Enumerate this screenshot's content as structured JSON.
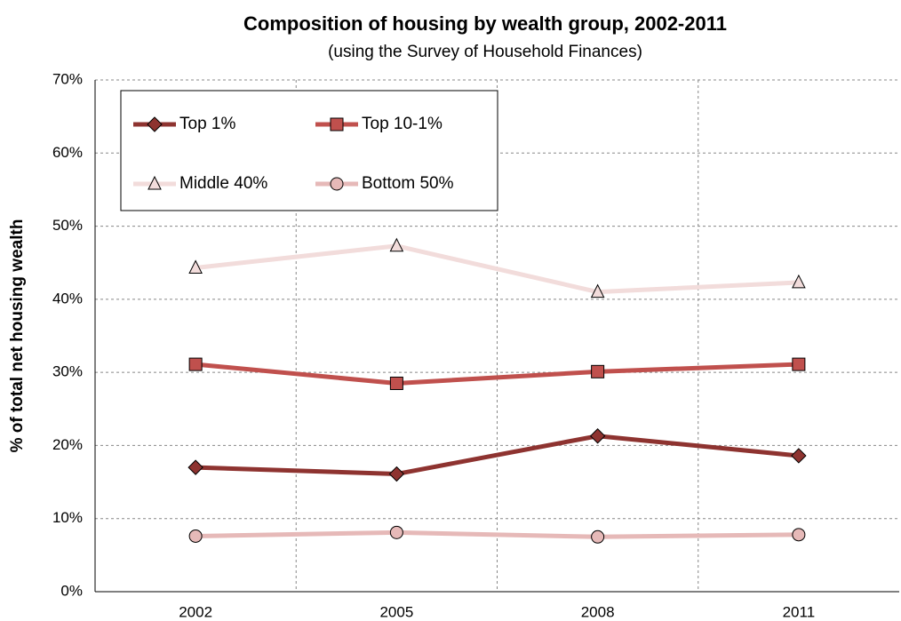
{
  "chart_data": {
    "type": "line",
    "title": "Composition of housing by wealth group, 2002-2011",
    "subtitle": "(using the Survey of Household Finances)",
    "y_label": "% of total net housing wealth",
    "categories": [
      "2002",
      "2005",
      "2008",
      "2011"
    ],
    "series": [
      {
        "name": "Top 1%",
        "color": "#8e3330",
        "marker": "diamond",
        "values": [
          17.0,
          16.1,
          21.3,
          18.6
        ]
      },
      {
        "name": "Top 10-1%",
        "color": "#c0504d",
        "marker": "square",
        "values": [
          31.1,
          28.5,
          30.1,
          31.1
        ]
      },
      {
        "name": "Middle 40%",
        "color": "#f2dcdb",
        "marker": "triangle",
        "values": [
          44.3,
          47.3,
          41.0,
          42.3
        ]
      },
      {
        "name": "Bottom 50%",
        "color": "#e6b9b8",
        "marker": "circle",
        "values": [
          7.6,
          8.1,
          7.5,
          7.8
        ]
      }
    ],
    "ylim": [
      0,
      70
    ],
    "yticks": [
      {
        "value": 0,
        "label": "0%"
      },
      {
        "value": 10,
        "label": "10%"
      },
      {
        "value": 20,
        "label": "20%"
      },
      {
        "value": 30,
        "label": "30%"
      },
      {
        "value": 40,
        "label": "40%"
      },
      {
        "value": 50,
        "label": "50%"
      },
      {
        "value": 60,
        "label": "60%"
      },
      {
        "value": 70,
        "label": "70%"
      }
    ],
    "grid": true
  }
}
